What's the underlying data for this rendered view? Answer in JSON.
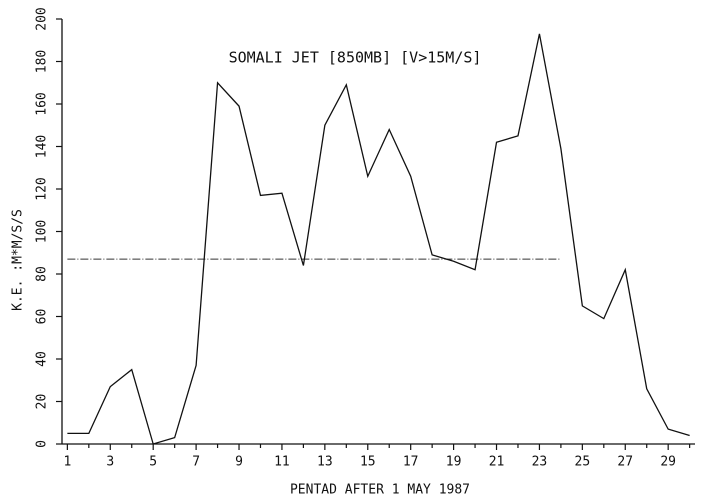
{
  "chart_data": {
    "type": "line",
    "title": "SOMALI JET [850MB] [V>15M/S]",
    "x_label": "PENTAD AFTER 1 MAY 1987",
    "y_label": "K.E. :M*M/S/S",
    "x": [
      1,
      2,
      3,
      4,
      5,
      6,
      7,
      8,
      9,
      10,
      11,
      12,
      13,
      14,
      15,
      16,
      17,
      18,
      19,
      20,
      21,
      22,
      23,
      24,
      25,
      26,
      27,
      28,
      29,
      30
    ],
    "series": [
      {
        "color": "#111111",
        "values": [
          5,
          5,
          27,
          35,
          0,
          3,
          37,
          170,
          159,
          117,
          118,
          84,
          150,
          169,
          126,
          148,
          126,
          89,
          86,
          82,
          142,
          145,
          193,
          139,
          65,
          59,
          82,
          26,
          7,
          4
        ]
      }
    ],
    "mean_line": {
      "value": 87,
      "x": [
        1,
        24
      ]
    },
    "xlim": [
      0.75,
      30.25
    ],
    "xticks": [
      1,
      3,
      5,
      7,
      9,
      11,
      13,
      15,
      17,
      19,
      21,
      23,
      25,
      27,
      29
    ],
    "x_minor_ticks": [
      2,
      4,
      6,
      8,
      10,
      12,
      14,
      16,
      18,
      20,
      22,
      24,
      26,
      28,
      30
    ],
    "ylim": [
      0,
      200
    ],
    "yticks": [
      0,
      20,
      40,
      60,
      80,
      100,
      120,
      140,
      160,
      180,
      200
    ]
  }
}
